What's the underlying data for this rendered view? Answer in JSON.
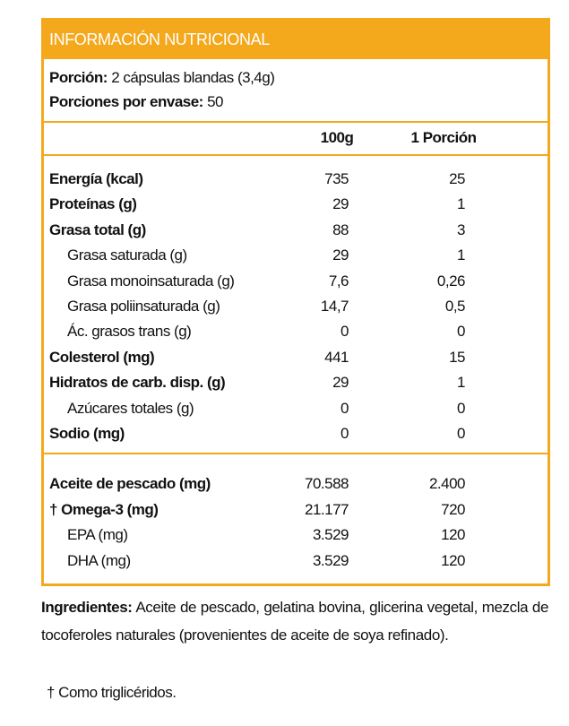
{
  "header": {
    "title": "INFORMACIÓN NUTRICIONAL"
  },
  "portion": {
    "label": "Porción:",
    "value": "2 cápsulas blandas (3,4g)"
  },
  "servings": {
    "label": "Porciones por envase:",
    "value": "50"
  },
  "columns": [
    "100g",
    "1 Porción"
  ],
  "table": {
    "rows": [
      [
        "Energía (kcal)",
        "735",
        "25"
      ],
      [
        "Proteínas (g)",
        "29",
        "1"
      ],
      [
        "Grasa total (g)",
        "88",
        "3"
      ],
      [
        "Grasa saturada (g)",
        "29",
        "1"
      ],
      [
        "Grasa monoinsaturada (g)",
        "7,6",
        "0,26"
      ],
      [
        "Grasa poliinsaturada (g)",
        "14,7",
        "0,5"
      ],
      [
        "Ác. grasos trans (g)",
        "0",
        "0"
      ],
      [
        "Colesterol (mg)",
        "441",
        "15"
      ],
      [
        "Hidratos de carb. disp. (g)",
        "29",
        "1"
      ],
      [
        "Azúcares totales (g)",
        "0",
        "0"
      ],
      [
        "Sodio (mg)",
        "0",
        "0"
      ]
    ],
    "rows2": [
      [
        "Aceite de pescado (mg)",
        "70.588",
        "2.400"
      ],
      [
        "† Omega-3 (mg)",
        "21.177",
        "720"
      ],
      [
        "EPA (mg)",
        "3.529",
        "120"
      ],
      [
        "DHA (mg)",
        "3.529",
        "120"
      ]
    ]
  },
  "ingredients": {
    "label": "Ingredientes:",
    "text": "Aceite de pescado, gelatina bovina, glicerina vegetal, mezcla de tocoferoles naturales (provenientes de aceite de soya refinado)."
  },
  "footnote": "† Como triglicéridos."
}
